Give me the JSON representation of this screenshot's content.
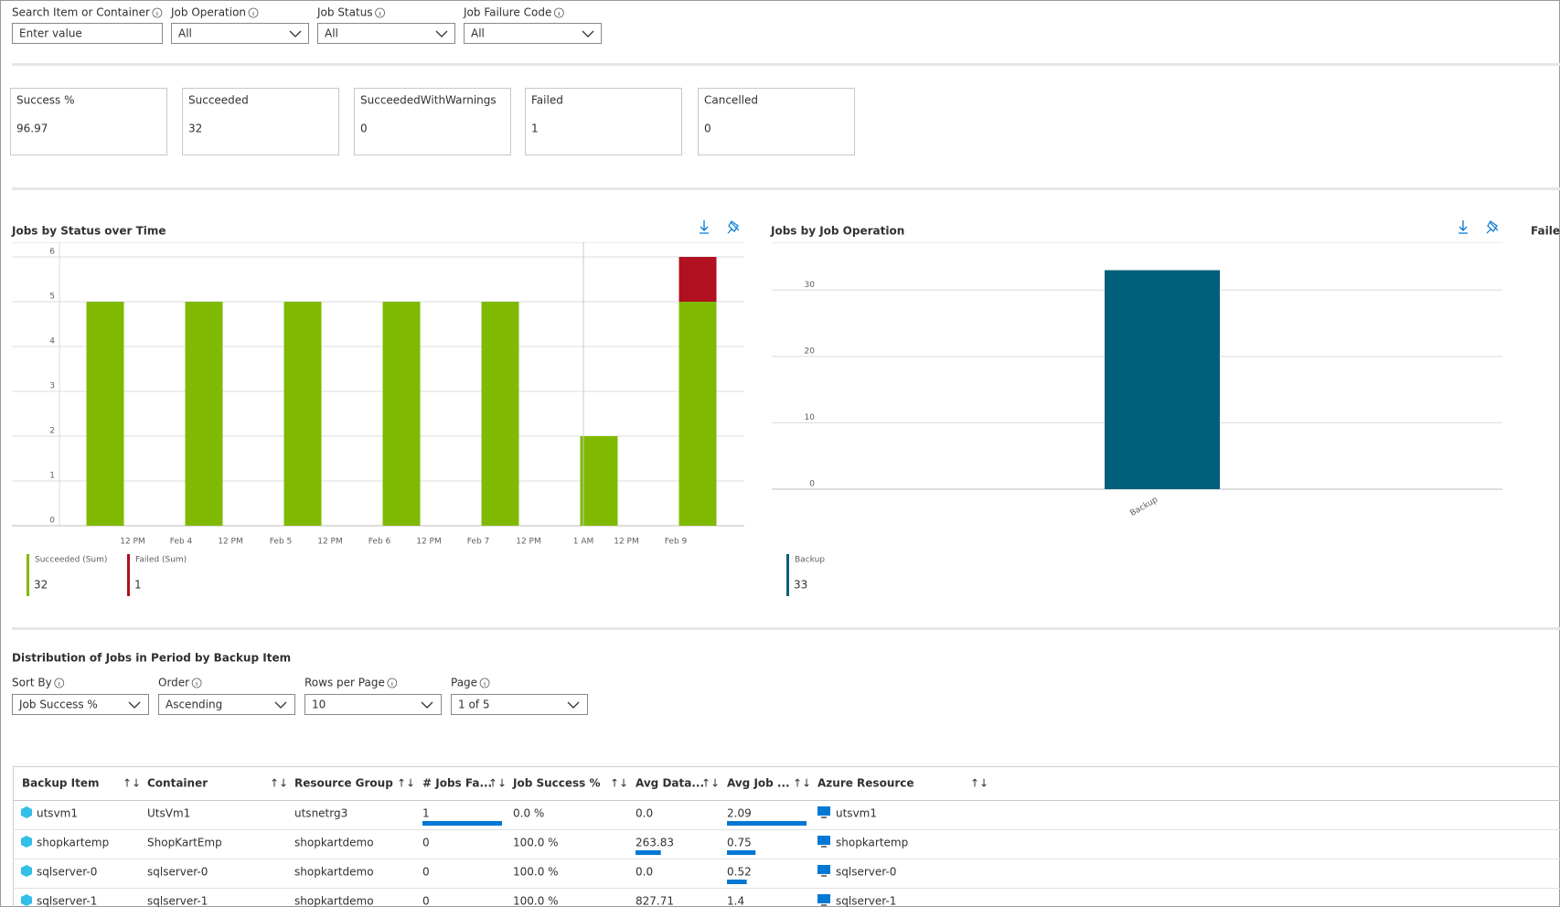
{
  "filters": [
    {
      "label": "Search Item or Container",
      "placeholder": "Enter value"
    },
    {
      "label": "Job Operation",
      "value": "All"
    },
    {
      "label": "Job Status",
      "value": "All"
    },
    {
      "label": "Job Failure Code",
      "value": "All"
    }
  ],
  "kpis": [
    {
      "label": "Success %",
      "value": 96.97
    },
    {
      "label": "Succeeded",
      "value": 32
    },
    {
      "label": "SucceededWithWarnings",
      "value": 0
    },
    {
      "label": "Failed",
      "value": 1
    },
    {
      "label": "Cancelled",
      "value": 0
    }
  ],
  "charts": [
    {
      "type": "bar",
      "stacked": true,
      "title": "Jobs by Status over Time",
      "categories": [
        null,
        null,
        null,
        null,
        null,
        null,
        null
      ],
      "xtick_labels": [
        "12 PM",
        "Feb 4",
        "12 PM",
        "Feb 5",
        "12 PM",
        "Feb 6",
        "12 PM",
        "Feb 7",
        "12 PM",
        "1 AM",
        "12 PM",
        "Feb 9"
      ],
      "series": [
        {
          "name": "Succeeded (Sum)",
          "color": "#7fba00",
          "values": [
            5,
            5,
            5,
            5,
            5,
            2,
            5
          ],
          "total": 32
        },
        {
          "name": "Failed (Sum)",
          "color": "#b0101f",
          "values": [
            0,
            0,
            0,
            0,
            0,
            0,
            1
          ],
          "total": 1
        }
      ],
      "ylim": [
        0,
        6
      ],
      "yticks": [
        0,
        1,
        2,
        3,
        4,
        5,
        6
      ],
      "grid": true
    },
    {
      "type": "bar",
      "title": "Jobs by Job Operation",
      "categories": [
        "Backup"
      ],
      "series": [
        {
          "name": "Backup",
          "color": "#005f7a",
          "values": [
            33
          ],
          "total": 33
        }
      ],
      "ylim": [
        0,
        35
      ],
      "yticks": [
        0,
        10,
        20,
        30
      ],
      "grid": true
    },
    {
      "title": "Faile"
    }
  ],
  "distribution": {
    "title": "Distribution of Jobs in Period by Backup Item",
    "controls": [
      {
        "label": "Sort By",
        "value": "Job Success %"
      },
      {
        "label": "Order",
        "value": "Ascending"
      },
      {
        "label": "Rows per Page",
        "value": "10"
      },
      {
        "label": "Page",
        "value": "1 of 5"
      }
    ],
    "table": {
      "columns": [
        "Backup Item",
        "Container",
        "Resource Group",
        "# Jobs Fa...",
        "Job Success %",
        "Avg Data...",
        "Avg Job ...",
        "Azure Resource"
      ],
      "rows": [
        [
          "utsvm1",
          "UtsVm1",
          "utsnetrg3",
          1,
          "0.0 %",
          {
            "value": 0,
            "label": "0.0"
          },
          2.09,
          "utsvm1"
        ],
        [
          "shopkartemp",
          "ShopKartEmp",
          "shopkartdemo",
          0,
          "100.0 %",
          263.83,
          0.75,
          "shopkartemp"
        ],
        [
          "sqlserver-0",
          "sqlserver-0",
          "shopkartdemo",
          0,
          "100.0 %",
          {
            "value": 0,
            "label": "0.0"
          },
          0.52,
          "sqlserver-0"
        ],
        [
          "sqlserver-1",
          "sqlserver-1",
          "shopkartdemo",
          0,
          "100.0 %",
          827.71,
          1.4,
          "sqlserver-1"
        ]
      ]
    }
  }
}
